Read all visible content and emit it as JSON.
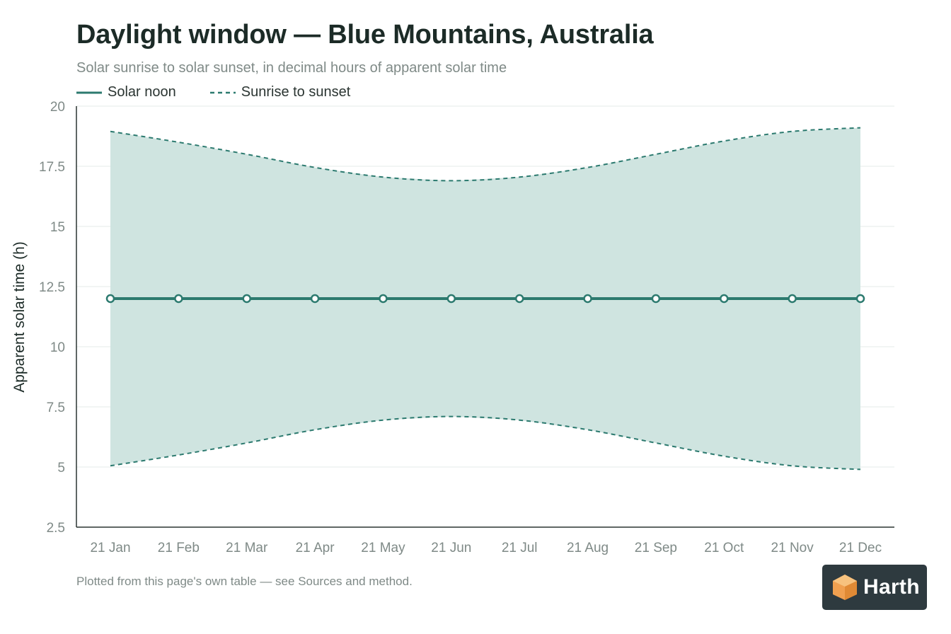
{
  "header": {
    "title": "Daylight window — Blue Mountains, Australia",
    "subtitle": "Solar sunrise to solar sunset, in decimal hours of apparent solar time"
  },
  "legend": {
    "items": [
      {
        "label": "Solar noon",
        "style": "solid"
      },
      {
        "label": "Sunrise to sunset",
        "style": "dashed"
      }
    ]
  },
  "footnote": "Plotted from this page's own table — see Sources and method.",
  "logo": {
    "text": "Harth",
    "icon": "cube-icon"
  },
  "colors": {
    "line": "#2c7a6f",
    "fill": "#cfe4e0",
    "axis": "#2b3532",
    "grid": "#e6ebea",
    "logo_bg": "#2e3a3f",
    "logo_orange": "#f0a050"
  },
  "chart_data": {
    "type": "line",
    "xlabel": "",
    "ylabel": "Apparent solar time (h)",
    "ylim": [
      2.5,
      20
    ],
    "yticks": [
      2.5,
      5,
      7.5,
      10,
      12.5,
      15,
      17.5,
      20
    ],
    "ytick_labels": [
      "2.5",
      "5",
      "7.5",
      "10",
      "12.5",
      "15",
      "17.5",
      "20"
    ],
    "categories": [
      "21 Jan",
      "21 Feb",
      "21 Mar",
      "21 Apr",
      "21 May",
      "21 Jun",
      "21 Jul",
      "21 Aug",
      "21 Sep",
      "21 Oct",
      "21 Nov",
      "21 Dec"
    ],
    "grid": true,
    "legend_position": "top-left",
    "series": [
      {
        "name": "Solar noon",
        "values": [
          12,
          12,
          12,
          12,
          12,
          12,
          12,
          12,
          12,
          12,
          12,
          12
        ]
      },
      {
        "name": "Sunrise",
        "values": [
          5.05,
          5.5,
          6.0,
          6.55,
          6.95,
          7.1,
          6.95,
          6.55,
          6.0,
          5.45,
          5.05,
          4.9
        ]
      },
      {
        "name": "Sunset",
        "values": [
          18.95,
          18.5,
          18.0,
          17.45,
          17.05,
          16.9,
          17.05,
          17.45,
          18.0,
          18.55,
          18.95,
          19.1
        ]
      }
    ]
  }
}
